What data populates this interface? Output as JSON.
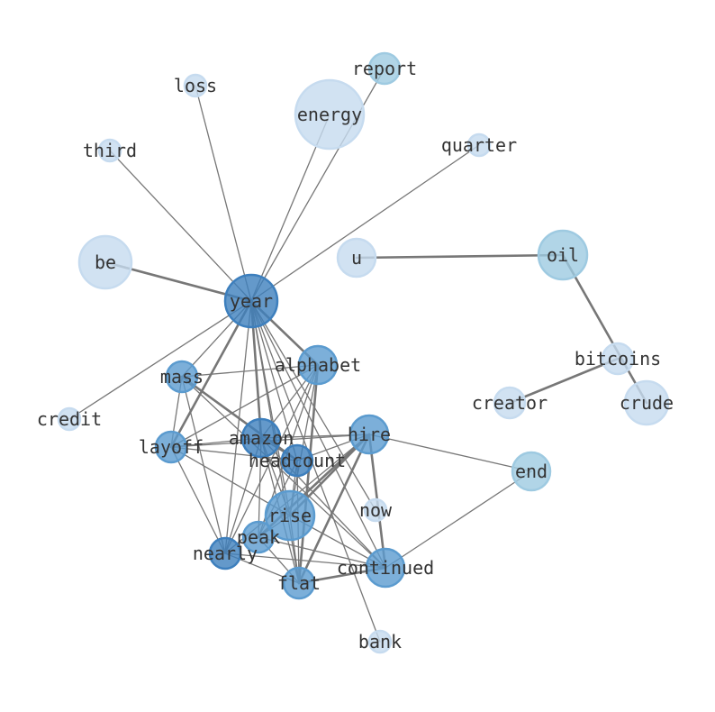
{
  "palette": {
    "dark": "#3d7fbd",
    "medium": "#5b9bcf",
    "mediumlight": "#9ecae1",
    "light": "#c6dbef",
    "edge": "#777777"
  },
  "nodes": [
    {
      "id": "report",
      "label": "report",
      "tone": "mediumlight"
    },
    {
      "id": "loss",
      "label": "loss",
      "tone": "light"
    },
    {
      "id": "energy",
      "label": "energy",
      "tone": "light"
    },
    {
      "id": "third",
      "label": "third",
      "tone": "light"
    },
    {
      "id": "quarter",
      "label": "quarter",
      "tone": "light"
    },
    {
      "id": "be",
      "label": "be",
      "tone": "light"
    },
    {
      "id": "u",
      "label": "u",
      "tone": "light"
    },
    {
      "id": "oil",
      "label": "oil",
      "tone": "mediumlight"
    },
    {
      "id": "year",
      "label": "year",
      "tone": "dark"
    },
    {
      "id": "alphabet",
      "label": "alphabet",
      "tone": "medium"
    },
    {
      "id": "mass",
      "label": "mass",
      "tone": "medium"
    },
    {
      "id": "bitcoins",
      "label": "bitcoins",
      "tone": "light"
    },
    {
      "id": "creator",
      "label": "creator",
      "tone": "light"
    },
    {
      "id": "crude",
      "label": "crude",
      "tone": "light"
    },
    {
      "id": "credit",
      "label": "credit",
      "tone": "light"
    },
    {
      "id": "layoff",
      "label": "layoff",
      "tone": "medium"
    },
    {
      "id": "amazon",
      "label": "amazon",
      "tone": "dark"
    },
    {
      "id": "hire",
      "label": "hire",
      "tone": "medium"
    },
    {
      "id": "headcount",
      "label": "headcount",
      "tone": "dark"
    },
    {
      "id": "end",
      "label": "end",
      "tone": "mediumlight"
    },
    {
      "id": "now",
      "label": "now",
      "tone": "light"
    },
    {
      "id": "rise",
      "label": "rise",
      "tone": "medium"
    },
    {
      "id": "peak",
      "label": "peak",
      "tone": "medium"
    },
    {
      "id": "nearly",
      "label": "nearly",
      "tone": "dark"
    },
    {
      "id": "continued",
      "label": "continued",
      "tone": "medium"
    },
    {
      "id": "flat",
      "label": "flat",
      "tone": "medium"
    },
    {
      "id": "bank",
      "label": "bank",
      "tone": "light"
    }
  ],
  "edges": [
    [
      "year",
      "loss",
      1
    ],
    [
      "year",
      "report",
      1
    ],
    [
      "year",
      "energy",
      1
    ],
    [
      "year",
      "third",
      1
    ],
    [
      "year",
      "quarter",
      1
    ],
    [
      "year",
      "be",
      2
    ],
    [
      "year",
      "credit",
      1
    ],
    [
      "year",
      "mass",
      1
    ],
    [
      "year",
      "layoff",
      2
    ],
    [
      "year",
      "amazon",
      2
    ],
    [
      "year",
      "alphabet",
      2
    ],
    [
      "year",
      "headcount",
      1
    ],
    [
      "year",
      "rise",
      1
    ],
    [
      "year",
      "now",
      1
    ],
    [
      "year",
      "continued",
      1
    ],
    [
      "year",
      "bank",
      1
    ],
    [
      "year",
      "nearly",
      1
    ],
    [
      "year",
      "flat",
      1
    ],
    [
      "u",
      "oil",
      2
    ],
    [
      "oil",
      "crude",
      2
    ],
    [
      "bitcoins",
      "creator",
      2
    ],
    [
      "mass",
      "alphabet",
      1
    ],
    [
      "mass",
      "layoff",
      1
    ],
    [
      "mass",
      "headcount",
      2
    ],
    [
      "mass",
      "continued",
      1
    ],
    [
      "mass",
      "nearly",
      1
    ],
    [
      "alphabet",
      "layoff",
      1
    ],
    [
      "alphabet",
      "amazon",
      1
    ],
    [
      "alphabet",
      "rise",
      1
    ],
    [
      "alphabet",
      "flat",
      2
    ],
    [
      "alphabet",
      "peak",
      1
    ],
    [
      "alphabet",
      "nearly",
      1
    ],
    [
      "layoff",
      "amazon",
      1
    ],
    [
      "layoff",
      "headcount",
      1
    ],
    [
      "layoff",
      "hire",
      1
    ],
    [
      "layoff",
      "rise",
      1
    ],
    [
      "layoff",
      "nearly",
      1
    ],
    [
      "amazon",
      "hire",
      1
    ],
    [
      "amazon",
      "headcount",
      1
    ],
    [
      "amazon",
      "rise",
      1
    ],
    [
      "amazon",
      "flat",
      1
    ],
    [
      "amazon",
      "nearly",
      1
    ],
    [
      "amazon",
      "peak",
      1
    ],
    [
      "amazon",
      "continued",
      1
    ],
    [
      "hire",
      "end",
      1
    ],
    [
      "hire",
      "headcount",
      1
    ],
    [
      "hire",
      "rise",
      2
    ],
    [
      "hire",
      "peak",
      2
    ],
    [
      "hire",
      "nearly",
      1
    ],
    [
      "hire",
      "flat",
      2
    ],
    [
      "hire",
      "continued",
      2
    ],
    [
      "headcount",
      "rise",
      1
    ],
    [
      "headcount",
      "flat",
      1
    ],
    [
      "headcount",
      "peak",
      1
    ],
    [
      "end",
      "continued",
      1
    ],
    [
      "rise",
      "continued",
      1
    ],
    [
      "rise",
      "flat",
      1
    ],
    [
      "rise",
      "peak",
      1
    ],
    [
      "peak",
      "continued",
      1
    ],
    [
      "peak",
      "flat",
      1
    ],
    [
      "nearly",
      "continued",
      1
    ],
    [
      "nearly",
      "flat",
      1
    ],
    [
      "flat",
      "continued",
      2
    ]
  ]
}
